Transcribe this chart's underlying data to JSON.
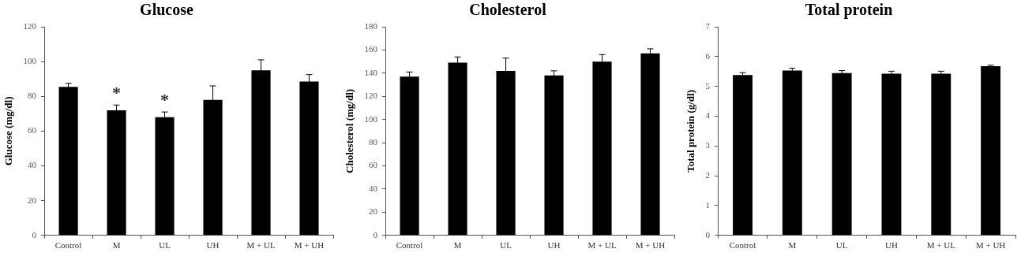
{
  "chart_data": [
    {
      "type": "bar",
      "title": "Glucose",
      "ylabel": "Glucose (mg/dl)",
      "categories": [
        "Control",
        "M",
        "UL",
        "UH",
        "M + UL",
        "M + UH"
      ],
      "values": [
        85.5,
        72,
        68,
        78,
        95,
        88.5
      ],
      "errors": [
        2,
        3,
        3,
        8,
        6,
        4
      ],
      "color": "#000000",
      "ylim": [
        0,
        120
      ],
      "yticks": [
        0,
        20,
        40,
        60,
        80,
        100,
        120
      ],
      "grid": false,
      "legend": false,
      "annotations": [
        {
          "text": "*",
          "x": "M",
          "y": 72
        },
        {
          "text": "*",
          "x": "UL",
          "y": 68
        }
      ]
    },
    {
      "type": "bar",
      "title": "Cholesterol",
      "ylabel": "Cholesterol (mg/dl)",
      "categories": [
        "Control",
        "M",
        "UL",
        "UH",
        "M + UL",
        "M + UH"
      ],
      "values": [
        137,
        149,
        142,
        138,
        150,
        157
      ],
      "errors": [
        4,
        5,
        11,
        4,
        6,
        4
      ],
      "color": "#000000",
      "ylim": [
        0,
        180
      ],
      "yticks": [
        0,
        20,
        40,
        60,
        80,
        100,
        120,
        140,
        160,
        180
      ],
      "grid": false,
      "legend": false
    },
    {
      "type": "bar",
      "title": "Total protein",
      "ylabel": "Total protein (g/dl)",
      "categories": [
        "Control",
        "M",
        "UL",
        "UH",
        "M + UL",
        "M + UH"
      ],
      "values": [
        5.38,
        5.53,
        5.45,
        5.43,
        5.43,
        5.68
      ],
      "errors": [
        0.08,
        0.08,
        0.08,
        0.08,
        0.08,
        0.03
      ],
      "color": "#000000",
      "ylim": [
        0,
        7
      ],
      "yticks": [
        0,
        1,
        2,
        3,
        4,
        5,
        6,
        7
      ],
      "grid": false,
      "legend": false
    }
  ]
}
